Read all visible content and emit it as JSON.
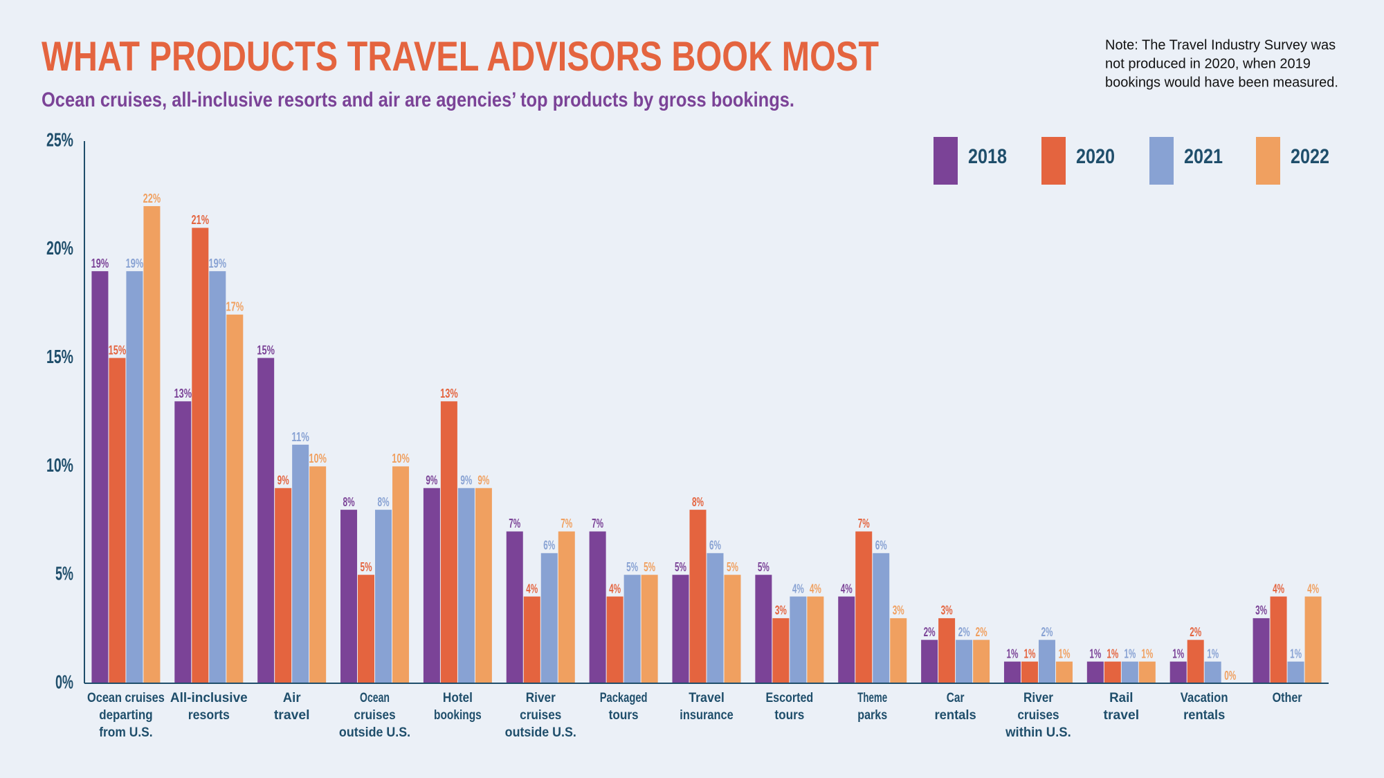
{
  "chart_data": {
    "type": "bar",
    "title": "WHAT PRODUCTS TRAVEL ADVISORS BOOK MOST",
    "subtitle": "Ocean cruises, all-inclusive resorts and air are agencies’ top products by gross bookings.",
    "note": [
      "Note: The Travel Industry Survey was",
      "not produced in 2020, when 2019",
      "bookings would have been measured."
    ],
    "categories": [
      [
        "Ocean cruises",
        "departing",
        "from U.S."
      ],
      [
        "All-inclusive",
        "resorts"
      ],
      [
        "Air",
        "travel"
      ],
      [
        "Ocean",
        "cruises",
        "outside U.S."
      ],
      [
        "Hotel",
        "bookings"
      ],
      [
        "River",
        "cruises",
        "outside U.S."
      ],
      [
        "Packaged",
        "tours"
      ],
      [
        "Travel",
        "insurance"
      ],
      [
        "Escorted",
        "tours"
      ],
      [
        "Theme",
        "parks"
      ],
      [
        "Car",
        "rentals"
      ],
      [
        "River",
        "cruises",
        "within U.S."
      ],
      [
        "Rail",
        "travel"
      ],
      [
        "Vacation",
        "rentals"
      ],
      [
        "Other"
      ]
    ],
    "series": [
      {
        "name": "2018",
        "color": "#7b4397",
        "values": [
          19,
          13,
          15,
          8,
          9,
          7,
          7,
          5,
          5,
          4,
          2,
          1,
          1,
          1,
          3
        ],
        "value_labels": [
          "19%",
          "13%",
          "15%",
          "8%",
          "9%",
          "7%",
          "7%",
          "5%",
          "5%",
          "4%",
          "2%",
          "1%",
          "1%",
          "1%",
          "3%"
        ]
      },
      {
        "name": "2020",
        "color": "#e4643f",
        "values": [
          15,
          21,
          9,
          5,
          13,
          4,
          4,
          8,
          3,
          7,
          3,
          1,
          1,
          2,
          4
        ],
        "value_labels": [
          "15%",
          "21%",
          "9%",
          "5%",
          "13%",
          "4%",
          "4%",
          "8%",
          "3%",
          "7%",
          "3%",
          "1%",
          "1%",
          "2%",
          "4%"
        ]
      },
      {
        "name": "2021",
        "color": "#88a2d3",
        "values": [
          19,
          19,
          11,
          8,
          9,
          6,
          5,
          6,
          4,
          6,
          2,
          2,
          1,
          1,
          1
        ],
        "value_labels": [
          "19%",
          "19%",
          "11%",
          "8%",
          "9%",
          "6%",
          "5%",
          "6%",
          "4%",
          "6%",
          "2%",
          "2%",
          "1%",
          "1%",
          "1%"
        ]
      },
      {
        "name": "2022",
        "color": "#f0a060",
        "values": [
          22,
          17,
          10,
          10,
          9,
          7,
          5,
          5,
          4,
          3,
          2,
          1,
          1,
          0,
          4
        ],
        "value_labels": [
          "22%",
          "17%",
          "10%",
          "10%",
          "9%",
          "7%",
          "5%",
          "5%",
          "4%",
          "3%",
          "2%",
          "1%",
          "1%",
          "0%",
          "4%"
        ]
      }
    ],
    "ylim": [
      0,
      25
    ],
    "yticks": [
      {
        "value": 0,
        "label": "0%"
      },
      {
        "value": 5,
        "label": "5%"
      },
      {
        "value": 10,
        "label": "10%"
      },
      {
        "value": 15,
        "label": "15%"
      },
      {
        "value": 20,
        "label": "20%"
      },
      {
        "value": 25,
        "label": "25%"
      }
    ],
    "grid": false
  }
}
